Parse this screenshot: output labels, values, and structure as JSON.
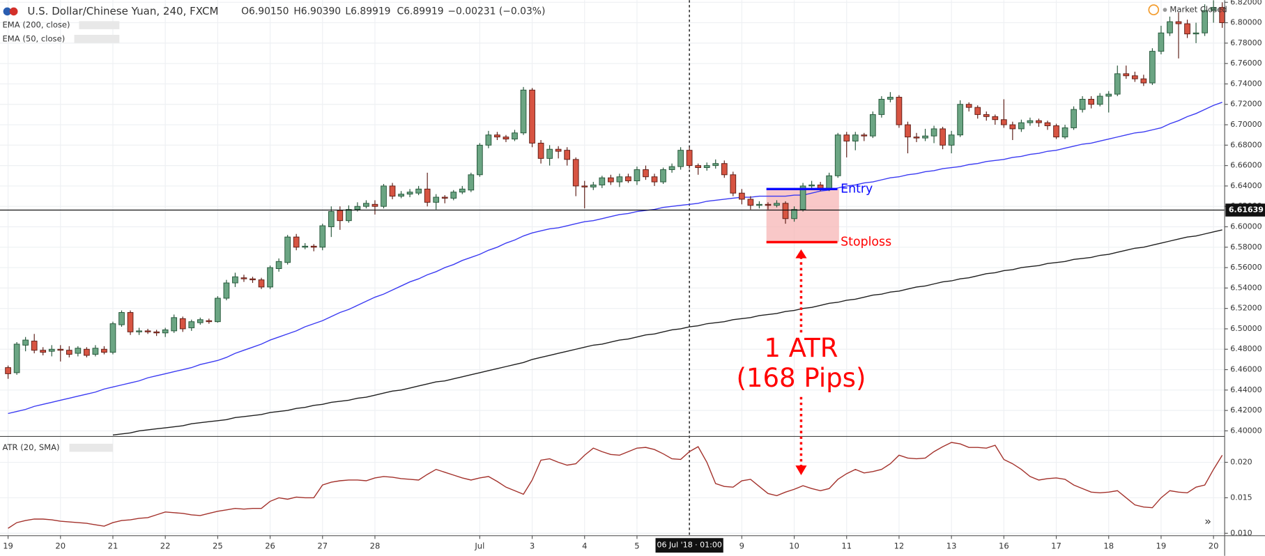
{
  "header": {
    "symbol": "U.S. Dollar/Chinese Yuan, 240, FXCM",
    "open": "O6.90150",
    "high": "H6.90390",
    "low": "L6.89919",
    "close": "C6.89919",
    "change": "−0.00231 (−0.03%)",
    "status": "Market Closed"
  },
  "chart_data": {
    "type": "candlestick",
    "categories": [
      "19",
      null,
      null,
      null,
      null,
      null,
      "20",
      null,
      null,
      null,
      null,
      null,
      "21",
      null,
      null,
      null,
      null,
      null,
      "22",
      null,
      null,
      null,
      null,
      null,
      "25",
      null,
      null,
      null,
      null,
      null,
      "26",
      null,
      null,
      null,
      null,
      null,
      "27",
      null,
      null,
      null,
      null,
      null,
      "28",
      null,
      null,
      null,
      null,
      null,
      null,
      null,
      null,
      null,
      null,
      null,
      "Jul",
      null,
      null,
      null,
      null,
      null,
      "3",
      null,
      null,
      null,
      null,
      null,
      "4",
      null,
      null,
      null,
      null,
      null,
      "5",
      null,
      null,
      null,
      null,
      null,
      "06 Jul '18 · 01:00",
      null,
      null,
      null,
      null,
      null,
      "9",
      null,
      null,
      null,
      null,
      null,
      "10",
      null,
      null,
      null,
      null,
      null,
      "11",
      null,
      null,
      null,
      null,
      null,
      "12",
      null,
      null,
      null,
      null,
      null,
      "13",
      null,
      null,
      null,
      null,
      null,
      "16",
      null,
      null,
      null,
      null,
      null,
      "17",
      null,
      null,
      null,
      null,
      null,
      "18",
      null,
      null,
      null,
      null,
      null,
      "19",
      null,
      null,
      null,
      null,
      null,
      "20",
      null
    ],
    "open": [
      6.462,
      6.457,
      6.484,
      6.488,
      6.479,
      6.478,
      6.48,
      6.479,
      6.476,
      6.48,
      6.475,
      6.48,
      6.477,
      6.504,
      6.516,
      6.497,
      6.498,
      6.497,
      6.496,
      6.498,
      6.51,
      6.501,
      6.506,
      6.508,
      6.507,
      6.53,
      6.545,
      6.55,
      6.549,
      6.548,
      6.541,
      6.559,
      6.565,
      6.59,
      6.58,
      6.581,
      6.58,
      6.6,
      6.616,
      6.606,
      6.617,
      6.62,
      6.622,
      6.62,
      6.64,
      6.63,
      6.632,
      6.633,
      6.637,
      6.624,
      6.629,
      6.628,
      6.634,
      6.636,
      6.651,
      6.68,
      6.69,
      6.688,
      6.686,
      6.692,
      6.734,
      6.682,
      6.667,
      6.676,
      6.675,
      6.666,
      6.64,
      6.639,
      6.641,
      6.648,
      6.644,
      6.649,
      6.645,
      6.656,
      6.649,
      6.644,
      6.656,
      6.659,
      6.675,
      6.66,
      6.658,
      6.66,
      6.662,
      6.651,
      6.633,
      6.627,
      6.621,
      6.622,
      6.621,
      6.623,
      6.608,
      6.617,
      6.64,
      6.641,
      6.637,
      6.65,
      6.69,
      6.684,
      6.69,
      6.689,
      6.71,
      6.725,
      6.727,
      6.7,
      6.688,
      6.687,
      6.689,
      6.696,
      6.68,
      6.69,
      6.72,
      6.717,
      6.71,
      6.708,
      6.705,
      6.7,
      6.696,
      6.702,
      6.704,
      6.702,
      6.699,
      6.688,
      6.697,
      6.715,
      6.725,
      6.72,
      6.728,
      6.73,
      6.75,
      6.748,
      6.745,
      6.741,
      6.772,
      6.79,
      6.801,
      6.799,
      6.789,
      6.79,
      6.812,
      6.815
    ],
    "high": [
      6.464,
      6.487,
      6.492,
      6.495,
      6.482,
      6.484,
      6.484,
      6.483,
      6.483,
      6.482,
      6.484,
      6.483,
      6.507,
      6.518,
      6.518,
      6.501,
      6.5,
      6.499,
      6.501,
      6.514,
      6.512,
      6.509,
      6.511,
      6.51,
      6.532,
      6.548,
      6.555,
      6.553,
      6.551,
      6.55,
      6.562,
      6.569,
      6.592,
      6.593,
      6.584,
      6.583,
      6.603,
      6.62,
      6.62,
      6.621,
      6.624,
      6.626,
      6.626,
      6.642,
      6.643,
      6.635,
      6.637,
      6.64,
      6.653,
      6.632,
      6.631,
      6.636,
      6.64,
      6.653,
      6.682,
      6.694,
      6.693,
      6.69,
      6.695,
      6.737,
      6.736,
      6.685,
      6.68,
      6.679,
      6.678,
      6.668,
      6.645,
      6.644,
      6.65,
      6.651,
      6.652,
      6.652,
      6.659,
      6.66,
      6.652,
      6.658,
      6.662,
      6.678,
      6.678,
      6.662,
      6.663,
      6.666,
      6.665,
      6.654,
      6.637,
      6.63,
      6.625,
      6.624,
      6.626,
      6.625,
      6.62,
      6.643,
      6.645,
      6.644,
      6.653,
      6.692,
      6.693,
      6.693,
      6.692,
      6.713,
      6.728,
      6.732,
      6.729,
      6.703,
      6.692,
      6.696,
      6.699,
      6.698,
      6.694,
      6.724,
      6.722,
      6.719,
      6.713,
      6.71,
      6.725,
      6.703,
      6.705,
      6.707,
      6.706,
      6.704,
      6.701,
      6.7,
      6.718,
      6.728,
      6.728,
      6.731,
      6.733,
      6.758,
      6.758,
      6.752,
      6.749,
      6.775,
      6.797,
      6.806,
      6.81,
      6.803,
      6.8,
      6.818,
      6.822,
      6.82
    ],
    "low": [
      6.451,
      6.455,
      6.478,
      6.476,
      6.474,
      6.473,
      6.468,
      6.472,
      6.473,
      6.472,
      6.473,
      6.475,
      6.475,
      6.502,
      6.494,
      6.494,
      6.495,
      6.493,
      6.492,
      6.496,
      6.497,
      6.498,
      6.504,
      6.505,
      6.506,
      6.528,
      6.541,
      6.546,
      6.545,
      6.539,
      6.539,
      6.556,
      6.563,
      6.577,
      6.578,
      6.576,
      6.577,
      6.59,
      6.597,
      6.604,
      6.615,
      6.618,
      6.612,
      6.618,
      6.627,
      6.628,
      6.629,
      6.631,
      6.62,
      6.617,
      6.623,
      6.626,
      6.632,
      6.634,
      6.649,
      6.677,
      6.685,
      6.683,
      6.684,
      6.69,
      6.678,
      6.662,
      6.66,
      6.667,
      6.66,
      6.63,
      6.618,
      6.636,
      6.638,
      6.641,
      6.639,
      6.643,
      6.641,
      6.646,
      6.64,
      6.642,
      6.653,
      6.656,
      6.657,
      6.651,
      6.655,
      6.657,
      6.648,
      6.63,
      6.622,
      6.617,
      6.618,
      6.617,
      6.619,
      6.603,
      6.605,
      6.615,
      6.637,
      6.635,
      6.635,
      6.648,
      6.668,
      6.675,
      6.684,
      6.687,
      6.707,
      6.722,
      6.697,
      6.672,
      6.683,
      6.684,
      6.682,
      6.676,
      6.672,
      6.688,
      6.713,
      6.706,
      6.704,
      6.7,
      6.697,
      6.685,
      6.693,
      6.699,
      6.698,
      6.695,
      6.686,
      6.686,
      6.695,
      6.712,
      6.716,
      6.718,
      6.712,
      6.728,
      6.745,
      6.742,
      6.738,
      6.739,
      6.769,
      6.787,
      6.765,
      6.785,
      6.78,
      6.787,
      6.8,
      6.795
    ],
    "close": [
      6.456,
      6.485,
      6.489,
      6.479,
      6.477,
      6.48,
      6.479,
      6.475,
      6.481,
      6.474,
      6.481,
      6.477,
      6.505,
      6.516,
      6.497,
      6.498,
      6.497,
      6.496,
      6.499,
      6.511,
      6.5,
      6.507,
      6.509,
      6.507,
      6.53,
      6.545,
      6.551,
      6.549,
      6.548,
      6.541,
      6.56,
      6.566,
      6.59,
      6.58,
      6.581,
      6.58,
      6.601,
      6.615,
      6.606,
      6.617,
      6.62,
      6.623,
      6.62,
      6.64,
      6.63,
      6.632,
      6.634,
      6.637,
      6.624,
      6.629,
      6.628,
      6.634,
      6.637,
      6.651,
      6.68,
      6.69,
      6.688,
      6.686,
      6.692,
      6.734,
      6.682,
      6.667,
      6.676,
      6.674,
      6.666,
      6.64,
      6.639,
      6.641,
      6.648,
      6.644,
      6.649,
      6.645,
      6.656,
      6.649,
      6.644,
      6.656,
      6.659,
      6.675,
      6.66,
      6.658,
      6.66,
      6.662,
      6.651,
      6.633,
      6.627,
      6.621,
      6.622,
      6.621,
      6.623,
      6.608,
      6.617,
      6.64,
      6.641,
      6.637,
      6.65,
      6.69,
      6.684,
      6.69,
      6.689,
      6.71,
      6.725,
      6.727,
      6.7,
      6.688,
      6.687,
      6.689,
      6.696,
      6.68,
      6.69,
      6.72,
      6.717,
      6.71,
      6.708,
      6.705,
      6.7,
      6.696,
      6.702,
      6.704,
      6.702,
      6.699,
      6.688,
      6.697,
      6.715,
      6.725,
      6.72,
      6.728,
      6.73,
      6.75,
      6.748,
      6.745,
      6.741,
      6.772,
      6.79,
      6.801,
      6.799,
      6.789,
      6.79,
      6.812,
      6.815,
      6.8
    ],
    "up_color": "#6ba583",
    "down_color": "#d75442",
    "series": [
      {
        "name": "EMA (200, close)",
        "color": "#1e1e1e",
        "values": [
          null,
          null,
          null,
          null,
          null,
          null,
          null,
          null,
          null,
          null,
          null,
          null,
          6.396,
          6.397,
          6.398,
          6.4,
          6.401,
          6.402,
          6.403,
          6.404,
          6.405,
          6.407,
          6.408,
          6.409,
          6.41,
          6.411,
          6.413,
          6.414,
          6.415,
          6.416,
          6.418,
          6.419,
          6.42,
          6.422,
          6.423,
          6.425,
          6.426,
          6.428,
          6.429,
          6.43,
          6.432,
          6.433,
          6.435,
          6.437,
          6.439,
          6.44,
          6.442,
          6.444,
          6.446,
          6.448,
          6.449,
          6.451,
          6.453,
          6.455,
          6.457,
          6.459,
          6.461,
          6.463,
          6.465,
          6.467,
          6.47,
          6.472,
          6.474,
          6.476,
          6.478,
          6.48,
          6.482,
          6.484,
          6.485,
          6.487,
          6.489,
          6.49,
          6.492,
          6.494,
          6.495,
          6.497,
          6.499,
          6.5,
          6.502,
          6.503,
          6.505,
          6.506,
          6.507,
          6.509,
          6.51,
          6.511,
          6.513,
          6.514,
          6.515,
          6.517,
          6.518,
          6.52,
          6.521,
          6.523,
          6.525,
          6.526,
          6.528,
          6.529,
          6.531,
          6.533,
          6.534,
          6.536,
          6.537,
          6.539,
          6.541,
          6.542,
          6.544,
          6.546,
          6.547,
          6.549,
          6.55,
          6.552,
          6.554,
          6.555,
          6.557,
          6.558,
          6.56,
          6.561,
          6.562,
          6.564,
          6.565,
          6.566,
          6.568,
          6.569,
          6.57,
          6.572,
          6.573,
          6.575,
          6.577,
          6.579,
          6.58,
          6.582,
          6.584,
          6.586,
          6.588,
          6.59,
          6.591,
          6.593,
          6.595,
          6.597
        ]
      },
      {
        "name": "EMA (50, close)",
        "color": "#3a3af2",
        "values": [
          6.417,
          6.419,
          6.421,
          6.424,
          6.426,
          6.428,
          6.43,
          6.432,
          6.434,
          6.436,
          6.438,
          6.441,
          6.443,
          6.445,
          6.447,
          6.449,
          6.452,
          6.454,
          6.456,
          6.458,
          6.46,
          6.462,
          6.465,
          6.467,
          6.469,
          6.472,
          6.476,
          6.479,
          6.482,
          6.485,
          6.489,
          6.492,
          6.495,
          6.498,
          6.502,
          6.505,
          6.508,
          6.512,
          6.516,
          6.519,
          6.523,
          6.527,
          6.531,
          6.534,
          6.538,
          6.542,
          6.546,
          6.549,
          6.553,
          6.556,
          6.56,
          6.563,
          6.567,
          6.57,
          6.573,
          6.577,
          6.58,
          6.584,
          6.587,
          6.591,
          6.594,
          6.596,
          6.598,
          6.599,
          6.601,
          6.603,
          6.605,
          6.606,
          6.608,
          6.61,
          6.612,
          6.613,
          6.615,
          6.616,
          6.617,
          6.619,
          6.62,
          6.621,
          6.622,
          6.623,
          6.625,
          6.626,
          6.627,
          6.628,
          6.629,
          6.629,
          6.63,
          6.63,
          6.63,
          6.63,
          6.631,
          6.631,
          6.633,
          6.635,
          6.636,
          6.638,
          6.64,
          6.641,
          6.643,
          6.644,
          6.646,
          6.648,
          6.649,
          6.651,
          6.652,
          6.654,
          6.655,
          6.657,
          6.658,
          6.659,
          6.661,
          6.662,
          6.664,
          6.665,
          6.666,
          6.668,
          6.669,
          6.671,
          6.672,
          6.674,
          6.675,
          6.677,
          6.679,
          6.681,
          6.682,
          6.684,
          6.686,
          6.688,
          6.69,
          6.692,
          6.693,
          6.695,
          6.697,
          6.701,
          6.704,
          6.708,
          6.711,
          6.715,
          6.719,
          6.722
        ]
      }
    ],
    "ylim": [
      6.3945,
      6.8221
    ],
    "yticks": [
      {
        "value": 6.82,
        "label": "6.82000"
      },
      {
        "value": 6.8,
        "label": "6.80000"
      },
      {
        "value": 6.78,
        "label": "6.78000"
      },
      {
        "value": 6.76,
        "label": "6.76000"
      },
      {
        "value": 6.74,
        "label": "6.74000"
      },
      {
        "value": 6.72,
        "label": "6.72000"
      },
      {
        "value": 6.7,
        "label": "6.70000"
      },
      {
        "value": 6.68,
        "label": "6.68000"
      },
      {
        "value": 6.66,
        "label": "6.66000"
      },
      {
        "value": 6.64,
        "label": "6.64000"
      },
      {
        "value": 6.62,
        "label": "6.62000"
      },
      {
        "value": 6.6,
        "label": "6.60000"
      },
      {
        "value": 6.58,
        "label": "6.58000"
      },
      {
        "value": 6.56,
        "label": "6.56000"
      },
      {
        "value": 6.54,
        "label": "6.54000"
      },
      {
        "value": 6.52,
        "label": "6.52000"
      },
      {
        "value": 6.5,
        "label": "6.50000"
      },
      {
        "value": 6.48,
        "label": "6.48000"
      },
      {
        "value": 6.46,
        "label": "6.46000"
      },
      {
        "value": 6.44,
        "label": "6.44000"
      },
      {
        "value": 6.42,
        "label": "6.42000"
      },
      {
        "value": 6.4,
        "label": "6.40000"
      }
    ],
    "grid": true,
    "crosshair_price": {
      "value": 6.61639,
      "label": "6.61639"
    },
    "levels": [
      {
        "label": "Entry",
        "value": 6.637,
        "color": "#0a0aff"
      },
      {
        "label": "Stoploss",
        "value": 6.585,
        "color": "#ff0000"
      }
    ],
    "atr_note": [
      "1 ATR",
      "(168 Pips)"
    ],
    "lower_pane": {
      "type": "line",
      "series": [
        {
          "name": "ATR (20, SMA)",
          "color": "#a3312b",
          "values": [
            0.0107,
            0.0115,
            0.0118,
            0.012,
            0.012,
            0.0119,
            0.0117,
            0.0116,
            0.0115,
            0.0114,
            0.0112,
            0.011,
            0.0115,
            0.0118,
            0.0119,
            0.0121,
            0.0122,
            0.0126,
            0.013,
            0.0129,
            0.0128,
            0.0126,
            0.0125,
            0.0128,
            0.0131,
            0.0133,
            0.0135,
            0.0134,
            0.0135,
            0.0135,
            0.0145,
            0.015,
            0.0148,
            0.0151,
            0.015,
            0.015,
            0.0168,
            0.0172,
            0.0174,
            0.0175,
            0.0175,
            0.0174,
            0.0178,
            0.018,
            0.0179,
            0.0177,
            0.0176,
            0.0175,
            0.0183,
            0.019,
            0.0186,
            0.0182,
            0.0178,
            0.0175,
            0.0178,
            0.018,
            0.0173,
            0.0165,
            0.016,
            0.0155,
            0.0175,
            0.0203,
            0.0205,
            0.02,
            0.0196,
            0.0198,
            0.021,
            0.022,
            0.0215,
            0.0211,
            0.021,
            0.0215,
            0.022,
            0.0221,
            0.0218,
            0.0212,
            0.0205,
            0.0204,
            0.0215,
            0.0222,
            0.02,
            0.017,
            0.0166,
            0.0165,
            0.0174,
            0.0176,
            0.0166,
            0.0156,
            0.0153,
            0.0158,
            0.0162,
            0.0167,
            0.0163,
            0.016,
            0.0163,
            0.0176,
            0.0184,
            0.019,
            0.0185,
            0.0187,
            0.019,
            0.0198,
            0.021,
            0.0206,
            0.0205,
            0.0206,
            0.0215,
            0.0222,
            0.0228,
            0.0226,
            0.0221,
            0.0221,
            0.022,
            0.0224,
            0.0204,
            0.0198,
            0.019,
            0.018,
            0.0175,
            0.0177,
            0.0178,
            0.0176,
            0.0168,
            0.0163,
            0.0158,
            0.0157,
            0.0158,
            0.016,
            0.015,
            0.014,
            0.0137,
            0.0136,
            0.015,
            0.016,
            0.0158,
            0.0157,
            0.0165,
            0.0168,
            0.019,
            0.021
          ]
        }
      ],
      "ylim": [
        0.00966,
        0.02364
      ],
      "yticks": [
        {
          "value": 0.02,
          "label": "0.020"
        },
        {
          "value": 0.015,
          "label": "0.015"
        },
        {
          "value": 0.01,
          "label": "0.010"
        }
      ]
    }
  }
}
